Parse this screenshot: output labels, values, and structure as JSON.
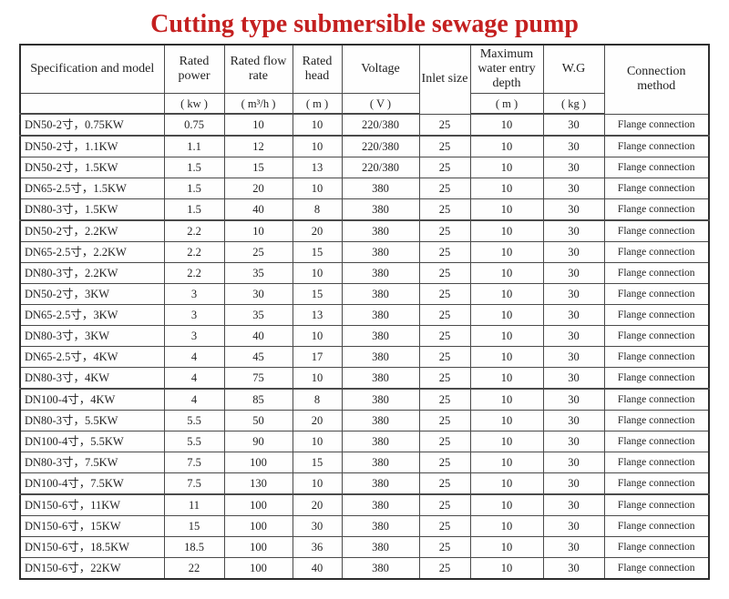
{
  "title": "Cutting type submersible sewage pump",
  "colors": {
    "title_red": "#c42020",
    "border": "#4a4a4a",
    "text": "#1f1f1f",
    "background": "#ffffff"
  },
  "table": {
    "columns": [
      {
        "key": "model",
        "label": "Specification and model",
        "unit": ""
      },
      {
        "key": "power",
        "label": "Rated power",
        "unit": "( kw )"
      },
      {
        "key": "flow",
        "label": "Rated flow rate",
        "unit": "( m³/h )"
      },
      {
        "key": "head",
        "label": "Rated head",
        "unit": "( m )"
      },
      {
        "key": "voltage",
        "label": "Voltage",
        "unit": "( V )"
      },
      {
        "key": "inlet",
        "label": "Inlet size",
        "unit": ""
      },
      {
        "key": "depth",
        "label": "Maximum water entry depth",
        "unit": "( m )"
      },
      {
        "key": "wg",
        "label": "W.G",
        "unit": "( kg )"
      },
      {
        "key": "connection",
        "label": "Connection method",
        "unit": ""
      }
    ],
    "rows": [
      [
        "DN50-2寸，0.75KW",
        "0.75",
        "10",
        "10",
        "220/380",
        "25",
        "10",
        "30",
        "Flange connection"
      ],
      [
        "DN50-2寸，1.1KW",
        "1.1",
        "12",
        "10",
        "220/380",
        "25",
        "10",
        "30",
        "Flange connection"
      ],
      [
        "DN50-2寸，1.5KW",
        "1.5",
        "15",
        "13",
        "220/380",
        "25",
        "10",
        "30",
        "Flange connection"
      ],
      [
        "DN65-2.5寸，1.5KW",
        "1.5",
        "20",
        "10",
        "380",
        "25",
        "10",
        "30",
        "Flange connection"
      ],
      [
        "DN80-3寸，1.5KW",
        "1.5",
        "40",
        "8",
        "380",
        "25",
        "10",
        "30",
        "Flange connection"
      ],
      [
        "DN50-2寸，2.2KW",
        "2.2",
        "10",
        "20",
        "380",
        "25",
        "10",
        "30",
        "Flange connection"
      ],
      [
        "DN65-2.5寸，2.2KW",
        "2.2",
        "25",
        "15",
        "380",
        "25",
        "10",
        "30",
        "Flange connection"
      ],
      [
        "DN80-3寸，2.2KW",
        "2.2",
        "35",
        "10",
        "380",
        "25",
        "10",
        "30",
        "Flange connection"
      ],
      [
        "DN50-2寸，3KW",
        "3",
        "30",
        "15",
        "380",
        "25",
        "10",
        "30",
        "Flange connection"
      ],
      [
        "DN65-2.5寸，3KW",
        "3",
        "35",
        "13",
        "380",
        "25",
        "10",
        "30",
        "Flange connection"
      ],
      [
        "DN80-3寸，3KW",
        "3",
        "40",
        "10",
        "380",
        "25",
        "10",
        "30",
        "Flange connection"
      ],
      [
        "DN65-2.5寸，4KW",
        "4",
        "45",
        "17",
        "380",
        "25",
        "10",
        "30",
        "Flange connection"
      ],
      [
        "DN80-3寸，4KW",
        "4",
        "75",
        "10",
        "380",
        "25",
        "10",
        "30",
        "Flange connection"
      ],
      [
        "DN100-4寸，4KW",
        "4",
        "85",
        "8",
        "380",
        "25",
        "10",
        "30",
        "Flange connection"
      ],
      [
        "DN80-3寸，5.5KW",
        "5.5",
        "50",
        "20",
        "380",
        "25",
        "10",
        "30",
        "Flange connection"
      ],
      [
        "DN100-4寸，5.5KW",
        "5.5",
        "90",
        "10",
        "380",
        "25",
        "10",
        "30",
        "Flange connection"
      ],
      [
        "DN80-3寸，7.5KW",
        "7.5",
        "100",
        "15",
        "380",
        "25",
        "10",
        "30",
        "Flange connection"
      ],
      [
        "DN100-4寸，7.5KW",
        "7.5",
        "130",
        "10",
        "380",
        "25",
        "10",
        "30",
        "Flange connection"
      ],
      [
        "DN150-6寸，11KW",
        "11",
        "100",
        "20",
        "380",
        "25",
        "10",
        "30",
        "Flange connection"
      ],
      [
        "DN150-6寸，15KW",
        "15",
        "100",
        "30",
        "380",
        "25",
        "10",
        "30",
        "Flange connection"
      ],
      [
        "DN150-6寸，18.5KW",
        "18.5",
        "100",
        "36",
        "380",
        "25",
        "10",
        "30",
        "Flange connection"
      ],
      [
        "DN150-6寸，22KW",
        "22",
        "100",
        "40",
        "380",
        "25",
        "10",
        "30",
        "Flange connection"
      ]
    ]
  }
}
